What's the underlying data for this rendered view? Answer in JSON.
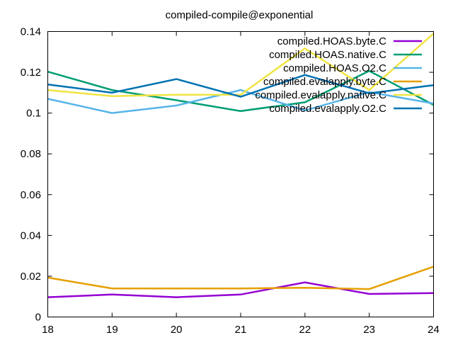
{
  "chart_data": {
    "type": "line",
    "title": "compiled-compile@exponential",
    "xlabel": "",
    "ylabel": "",
    "xlim": [
      18,
      24
    ],
    "ylim": [
      0,
      0.14
    ],
    "x": [
      18,
      19,
      20,
      21,
      22,
      23,
      24
    ],
    "x_ticks": [
      "18",
      "19",
      "20",
      "21",
      "22",
      "23",
      "24"
    ],
    "y_ticks": [
      0,
      0.02,
      0.04,
      0.06,
      0.08,
      0.1,
      0.12,
      0.14
    ],
    "y_tick_labels": [
      "0",
      "0.02",
      "0.04",
      "0.06",
      "0.08",
      "0.1",
      "0.12",
      "0.14"
    ],
    "grid": false,
    "legend_position": "top-right",
    "series": [
      {
        "name": "compiled.HOAS.byte.C",
        "color": "#9400d3",
        "values": [
          0.0097,
          0.011,
          0.0097,
          0.011,
          0.017,
          0.0113,
          0.0117
        ]
      },
      {
        "name": "compiled.HOAS.native.C",
        "color": "#009e73",
        "values": [
          0.1203,
          0.1113,
          0.1063,
          0.101,
          0.1053,
          0.1207,
          0.104
        ]
      },
      {
        "name": "compiled.HOAS.O2.C",
        "color": "#56b4e9",
        "values": [
          0.107,
          0.1,
          0.1037,
          0.1113,
          0.1013,
          0.1103,
          0.1047
        ]
      },
      {
        "name": "compiled.evalapply.byte.C",
        "color": "#e69f00",
        "values": [
          0.0193,
          0.014,
          0.014,
          0.014,
          0.0143,
          0.0137,
          0.0247
        ]
      },
      {
        "name": "compiled.evalapply.native.C",
        "color": "#f0e442",
        "values": [
          0.1113,
          0.1083,
          0.109,
          0.109,
          0.1317,
          0.1113,
          0.139
        ]
      },
      {
        "name": "compiled.evalapply.O2.C",
        "color": "#0072b2",
        "values": [
          0.114,
          0.11,
          0.1167,
          0.108,
          0.1187,
          0.1097,
          0.1137
        ]
      }
    ]
  }
}
